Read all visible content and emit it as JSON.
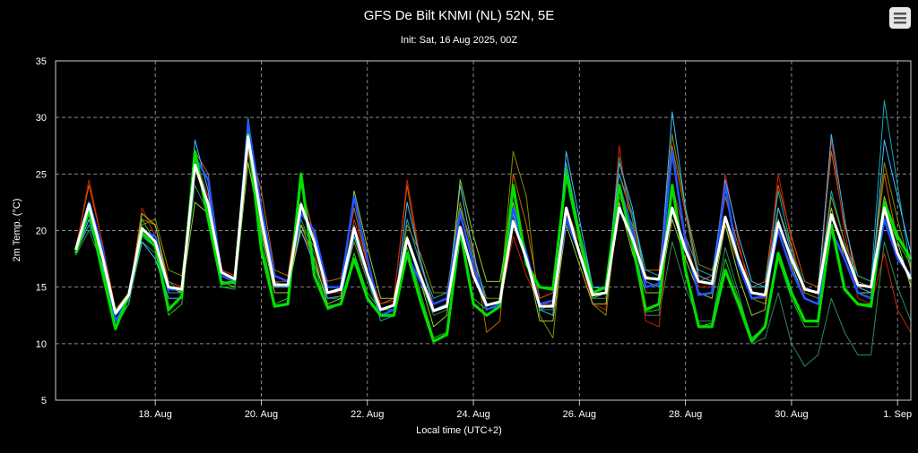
{
  "chart_data": {
    "type": "line",
    "title": "GFS De Bilt KNMI (NL) 52N, 5E",
    "subtitle": "Init: Sat, 16 Aug 2025, 00Z",
    "xlabel": "Local time (UTC+2)",
    "ylabel": "2m Temp. (°C)",
    "ylim": [
      5,
      35
    ],
    "y_ticks": [
      5,
      10,
      15,
      20,
      25,
      30,
      35
    ],
    "x_tick_labels": [
      "18. Aug",
      "20. Aug",
      "22. Aug",
      "24. Aug",
      "26. Aug",
      "28. Aug",
      "30. Aug",
      "1. Sep"
    ],
    "x_tick_values": [
      1.5,
      3.5,
      5.5,
      7.5,
      9.5,
      11.5,
      13.5,
      15.5
    ],
    "xlim": [
      -0.38,
      15.75
    ],
    "x_step_days": 0.25,
    "grid": true,
    "legend": "none",
    "series": [
      {
        "role": "mean",
        "color": "#ffffff",
        "values": [
          18.3,
          22.3,
          17.8,
          12.7,
          14.3,
          20.2,
          19.0,
          15.0,
          14.8,
          25.8,
          22.3,
          16.3,
          15.7,
          28.3,
          21.0,
          15.2,
          15.2,
          22.3,
          19.0,
          14.5,
          14.8,
          20.2,
          16.2,
          13.0,
          13.4,
          19.3,
          16.0,
          12.9,
          13.3,
          20.3,
          16.0,
          13.4,
          13.7,
          20.8,
          17.5,
          13.3,
          13.3,
          22.0,
          18.0,
          14.3,
          14.5,
          22.0,
          19.3,
          15.8,
          15.7,
          22.0,
          18.3,
          15.5,
          15.3,
          21.2,
          17.5,
          14.5,
          14.3,
          20.7,
          17.5,
          14.8,
          14.5,
          21.4,
          18.3,
          15.2,
          15.0,
          22.0,
          18.0,
          15.7
        ]
      },
      {
        "role": "member",
        "color": "#00e000",
        "values": [
          18.0,
          21.8,
          16.4,
          11.3,
          14.3,
          19.8,
          18.6,
          13.0,
          14.2,
          27.0,
          21.0,
          15.3,
          15.5,
          28.5,
          18.3,
          13.3,
          13.5,
          25.0,
          16.0,
          13.2,
          13.5,
          17.5,
          14.0,
          12.5,
          12.5,
          18.0,
          13.8,
          10.2,
          10.8,
          20.0,
          13.5,
          12.5,
          13.3,
          24.0,
          17.0,
          15.0,
          14.8,
          25.0,
          19.5,
          14.5,
          15.0,
          24.0,
          18.8,
          13.0,
          13.5,
          24.0,
          16.5,
          11.5,
          11.5,
          16.5,
          13.5,
          10.2,
          11.5,
          18.0,
          14.5,
          12.0,
          12.0,
          20.5,
          14.8,
          13.5,
          13.3,
          22.5,
          19.5,
          17.5
        ]
      },
      {
        "role": "member",
        "color": "#2255ff",
        "values": [
          18.3,
          22.5,
          18.5,
          12.0,
          14.0,
          20.0,
          19.5,
          14.8,
          14.8,
          26.5,
          24.5,
          16.0,
          15.5,
          29.5,
          22.0,
          16.0,
          15.5,
          21.5,
          20.0,
          15.0,
          15.0,
          23.0,
          17.5,
          12.5,
          13.0,
          17.8,
          15.5,
          13.5,
          14.0,
          21.5,
          17.0,
          13.0,
          13.5,
          22.0,
          18.0,
          13.5,
          13.8,
          21.0,
          18.0,
          14.3,
          14.5,
          24.0,
          20.0,
          15.0,
          15.3,
          27.0,
          19.0,
          14.3,
          14.5,
          24.0,
          17.0,
          14.0,
          14.2,
          20.0,
          16.5,
          14.0,
          13.5,
          20.0,
          17.5,
          14.5,
          14.0,
          21.0,
          17.5,
          16.0
        ]
      },
      {
        "role": "member",
        "color": "#cc6600",
        "values": [
          18.5,
          24.0,
          19.0,
          13.0,
          14.5,
          21.0,
          20.5,
          15.5,
          15.0,
          27.0,
          25.0,
          16.5,
          16.0,
          28.0,
          23.5,
          16.5,
          16.0,
          24.0,
          19.5,
          15.5,
          15.8,
          22.0,
          17.0,
          13.5,
          14.0,
          24.0,
          17.0,
          13.5,
          14.0,
          22.0,
          18.5,
          11.0,
          12.0,
          25.0,
          20.5,
          14.0,
          14.5,
          26.0,
          20.0,
          14.5,
          15.0,
          25.0,
          21.0,
          16.5,
          16.5,
          27.5,
          21.5,
          15.5,
          16.0,
          23.0,
          18.5,
          15.0,
          15.5,
          24.0,
          19.5,
          15.5,
          15.0,
          27.0,
          20.5,
          16.0,
          15.5,
          25.0,
          19.0,
          15.0
        ]
      },
      {
        "role": "member",
        "color": "#10aabb",
        "values": [
          18.0,
          20.5,
          17.5,
          12.5,
          14.0,
          19.5,
          18.5,
          14.5,
          14.5,
          26.0,
          23.0,
          16.0,
          15.5,
          30.0,
          21.5,
          15.5,
          15.0,
          22.5,
          19.0,
          14.5,
          15.0,
          20.5,
          16.0,
          12.0,
          12.5,
          21.0,
          17.0,
          14.0,
          14.5,
          22.0,
          16.5,
          13.0,
          13.5,
          21.0,
          17.5,
          13.0,
          13.5,
          26.0,
          20.0,
          15.0,
          15.0,
          25.0,
          21.5,
          16.5,
          16.0,
          24.0,
          19.5,
          16.5,
          16.0,
          24.0,
          17.5,
          15.0,
          15.0,
          23.5,
          18.5,
          15.0,
          14.5,
          23.5,
          19.0,
          16.0,
          15.5,
          31.5,
          24.0,
          16.5
        ]
      },
      {
        "role": "member",
        "color": "#8a8a00",
        "values": [
          17.8,
          21.0,
          18.0,
          13.0,
          14.5,
          20.5,
          21.0,
          16.5,
          16.0,
          25.5,
          22.0,
          16.5,
          16.0,
          27.0,
          20.5,
          15.0,
          15.2,
          20.5,
          18.5,
          14.5,
          14.5,
          19.0,
          15.5,
          12.5,
          13.0,
          20.5,
          18.0,
          14.5,
          14.5,
          22.5,
          17.5,
          14.0,
          14.0,
          27.0,
          23.0,
          12.5,
          10.5,
          22.0,
          19.0,
          13.5,
          12.5,
          23.0,
          20.5,
          16.0,
          15.5,
          28.5,
          22.0,
          17.0,
          16.5,
          20.5,
          17.0,
          14.0,
          13.5,
          22.0,
          18.5,
          14.5,
          14.0,
          23.0,
          19.0,
          15.5,
          15.0,
          26.0,
          21.0,
          16.5
        ]
      },
      {
        "role": "member",
        "color": "#2e8b57",
        "values": [
          17.8,
          20.0,
          17.0,
          12.0,
          13.5,
          19.0,
          18.0,
          15.5,
          14.5,
          24.0,
          21.5,
          15.0,
          14.8,
          26.0,
          20.0,
          14.5,
          14.5,
          21.0,
          18.0,
          14.0,
          14.0,
          19.5,
          15.5,
          12.5,
          13.0,
          19.0,
          15.5,
          12.5,
          13.0,
          20.0,
          16.0,
          13.0,
          13.3,
          21.5,
          17.0,
          13.0,
          13.0,
          22.0,
          18.0,
          14.0,
          14.0,
          26.5,
          21.0,
          12.5,
          12.5,
          19.0,
          15.0,
          12.0,
          12.0,
          18.5,
          14.5,
          10.0,
          10.5,
          14.5,
          10.0,
          8.0,
          9.0,
          14.0,
          11.0,
          9.0,
          9.0,
          19.0,
          15.0,
          12.0
        ]
      },
      {
        "role": "member",
        "color": "#cc2200",
        "values": [
          18.3,
          24.5,
          19.0,
          12.5,
          14.0,
          22.0,
          19.5,
          15.0,
          15.0,
          26.5,
          23.0,
          16.5,
          16.0,
          27.0,
          20.0,
          15.5,
          15.5,
          20.0,
          17.5,
          14.5,
          14.5,
          21.0,
          17.0,
          13.5,
          13.8,
          24.5,
          17.5,
          13.0,
          13.5,
          20.0,
          16.5,
          13.0,
          13.5,
          19.5,
          16.0,
          13.5,
          13.5,
          21.5,
          18.0,
          13.5,
          13.0,
          27.5,
          19.0,
          12.0,
          11.5,
          24.0,
          19.5,
          15.0,
          15.0,
          25.0,
          19.0,
          14.0,
          14.0,
          25.0,
          19.0,
          14.0,
          13.5,
          28.0,
          20.0,
          14.0,
          13.5,
          18.0,
          13.0,
          11.0
        ]
      },
      {
        "role": "member",
        "color": "#44bbff",
        "values": [
          18.0,
          21.0,
          17.0,
          12.5,
          14.0,
          19.0,
          17.5,
          14.0,
          14.0,
          28.0,
          23.5,
          15.5,
          15.3,
          27.5,
          20.5,
          15.0,
          15.0,
          20.0,
          17.0,
          14.0,
          14.2,
          19.5,
          16.0,
          12.5,
          12.5,
          22.5,
          17.5,
          13.0,
          13.5,
          24.0,
          18.0,
          13.5,
          13.5,
          21.5,
          18.0,
          13.0,
          12.5,
          27.0,
          21.0,
          15.0,
          14.8,
          26.0,
          22.0,
          15.5,
          15.0,
          30.5,
          22.0,
          16.0,
          15.5,
          24.5,
          19.5,
          15.5,
          15.0,
          22.0,
          18.0,
          14.8,
          14.5,
          28.5,
          21.0,
          15.0,
          14.5,
          28.0,
          23.0,
          18.0
        ]
      },
      {
        "role": "member",
        "color": "#99cc33",
        "values": [
          18.3,
          21.5,
          17.5,
          12.0,
          14.0,
          21.5,
          20.5,
          15.0,
          14.5,
          22.5,
          21.5,
          15.5,
          15.0,
          26.0,
          20.0,
          14.5,
          14.5,
          20.5,
          17.5,
          13.5,
          14.0,
          23.5,
          18.5,
          14.0,
          14.0,
          19.5,
          15.5,
          11.5,
          12.5,
          24.5,
          19.5,
          15.5,
          15.5,
          22.5,
          17.5,
          12.0,
          12.0,
          20.5,
          17.0,
          13.5,
          13.5,
          22.5,
          18.0,
          14.5,
          14.5,
          21.0,
          17.5,
          14.5,
          14.0,
          20.5,
          16.0,
          12.5,
          13.0,
          21.0,
          17.0,
          14.0,
          13.5,
          22.0,
          17.5,
          14.5,
          14.5,
          23.0,
          19.0,
          15.0
        ]
      },
      {
        "role": "member",
        "color": "#1ccc1c",
        "values": [
          18.0,
          22.0,
          17.5,
          11.5,
          13.5,
          21.0,
          19.0,
          12.5,
          13.5,
          26.5,
          22.0,
          15.0,
          15.0,
          28.0,
          19.5,
          13.5,
          14.0,
          24.5,
          17.0,
          13.0,
          13.5,
          18.0,
          14.5,
          13.0,
          13.0,
          18.5,
          14.5,
          10.5,
          11.0,
          20.0,
          14.0,
          13.0,
          13.5,
          23.5,
          17.5,
          15.0,
          15.0,
          25.5,
          20.0,
          14.0,
          14.5,
          24.0,
          19.5,
          12.8,
          13.0,
          24.0,
          16.5,
          11.5,
          11.8,
          17.5,
          14.0,
          10.5,
          11.5,
          17.5,
          14.0,
          11.5,
          11.5,
          20.0,
          15.0,
          13.5,
          13.5,
          22.0,
          19.0,
          17.0
        ]
      }
    ]
  }
}
